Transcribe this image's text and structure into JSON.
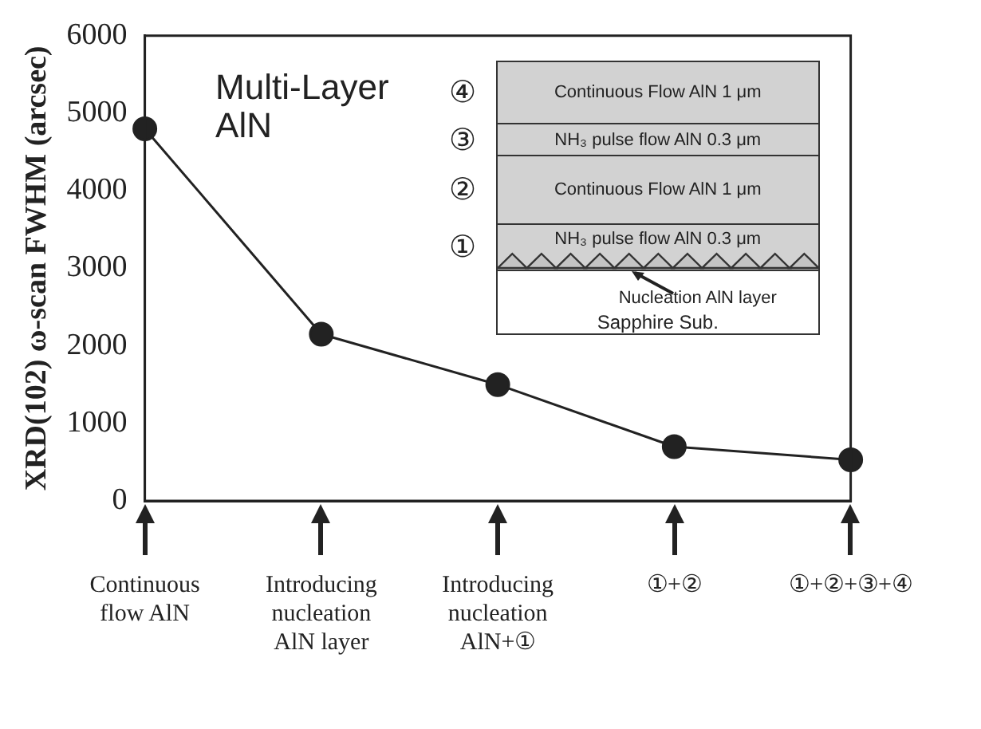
{
  "chart_data": {
    "type": "line",
    "categories": [
      "Continuous\nflow AlN",
      "Introducing\nnucleation\nAlN layer",
      "Introducing\nnucleation\nAlN+①",
      "①+②",
      "①+②+③+④"
    ],
    "series": [
      {
        "color": "#222222",
        "values": [
          4800,
          2150,
          1500,
          700,
          530
        ]
      }
    ],
    "ylabel": "XRD(102) ω-scan FWHM (arcsec)",
    "ylim": [
      0,
      6000
    ],
    "yticks": [
      0,
      1000,
      2000,
      3000,
      4000,
      5000,
      6000
    ],
    "marker": "circle",
    "line_style": "solid",
    "legend": false,
    "annotations": [
      "Multi-Layer\nAlN",
      "④",
      "Continuous Flow AlN  1 μm",
      "③",
      "NH₃ pulse flow AlN  0.3 μm",
      "②",
      "Continuous Flow AlN  1 μm",
      "①",
      "NH₃ pulse flow AlN  0.3 μm",
      "Nucleation AlN layer",
      "Sapphire Sub."
    ]
  }
}
